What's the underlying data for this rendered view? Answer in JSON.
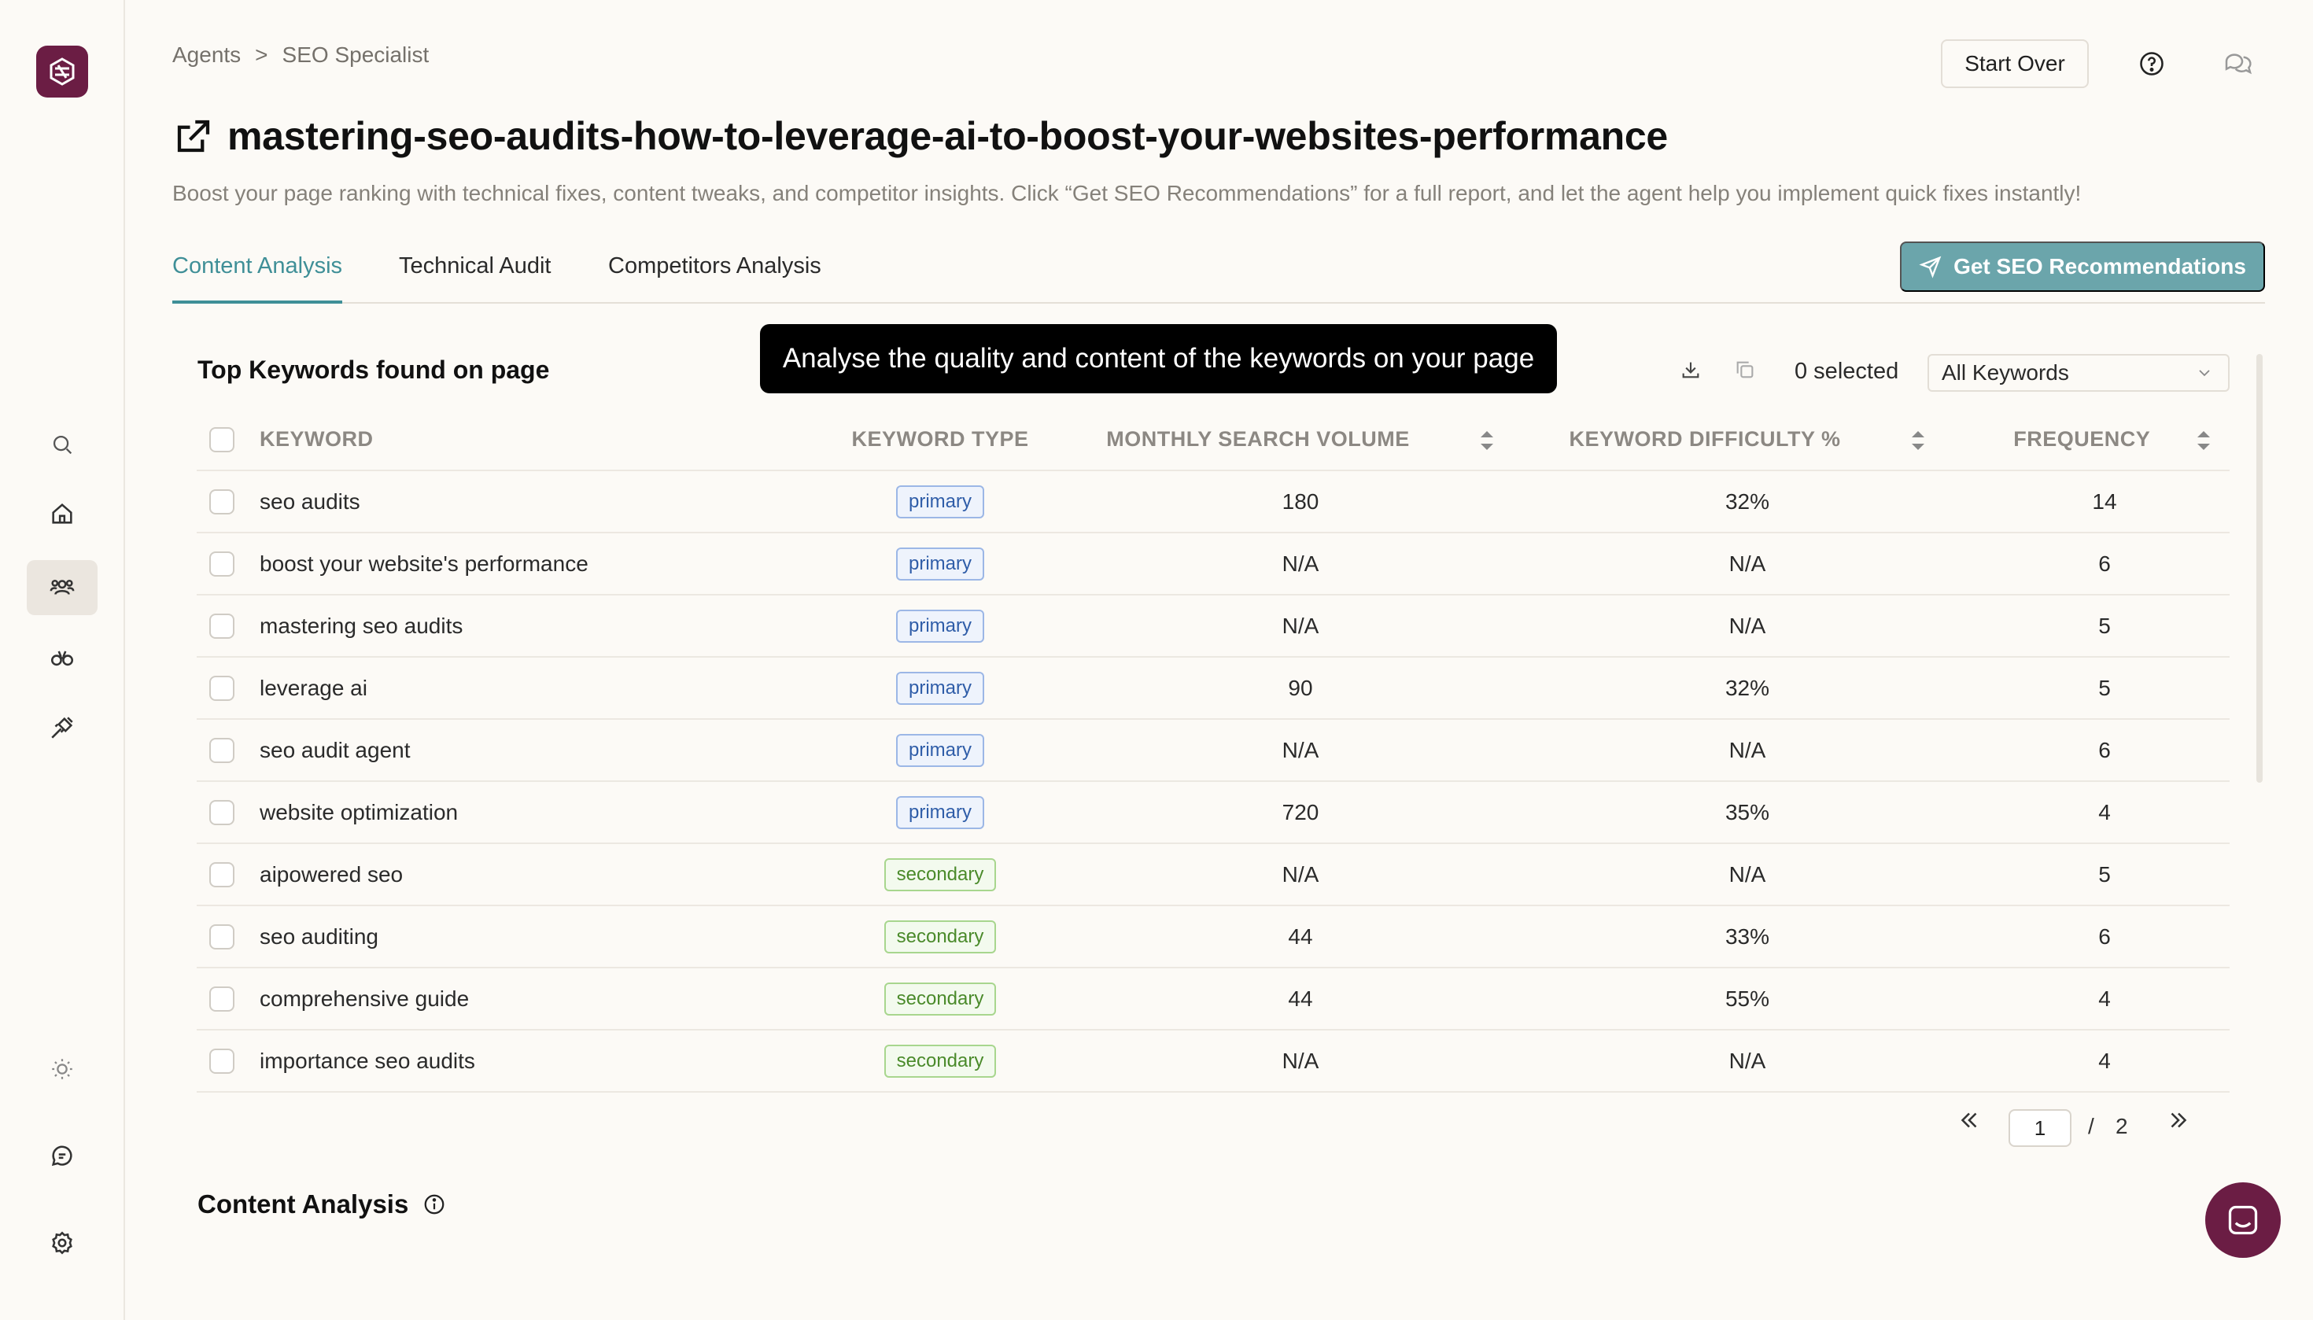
{
  "breadcrumb": {
    "root": "Agents",
    "sep": ">",
    "current": "SEO Specialist"
  },
  "header": {
    "start_over": "Start Over",
    "title": "mastering-seo-audits-how-to-leverage-ai-to-boost-your-websites-performance",
    "subtitle": "Boost your page ranking with technical fixes, content tweaks, and competitor insights. Click “Get SEO Recommendations” for a full report, and let the agent help you implement quick fixes instantly!"
  },
  "tabs": [
    "Content Analysis",
    "Technical Audit",
    "Competitors Analysis"
  ],
  "cta": {
    "label": "Get SEO Recommendations"
  },
  "card": {
    "title": "Top Keywords found on page",
    "tooltip": "Analyse the quality and content of the keywords on your page",
    "selected": "0 selected",
    "filter": "All Keywords"
  },
  "table": {
    "headers": {
      "keyword": "KEYWORD",
      "type": "KEYWORD TYPE",
      "volume": "MONTHLY SEARCH VOLUME",
      "difficulty": "KEYWORD DIFFICULTY %",
      "frequency": "FREQUENCY"
    },
    "rows": [
      {
        "keyword": "seo audits",
        "type": "primary",
        "volume": "180",
        "difficulty": "32%",
        "frequency": "14"
      },
      {
        "keyword": "boost your website's performance",
        "type": "primary",
        "volume": "N/A",
        "difficulty": "N/A",
        "frequency": "6"
      },
      {
        "keyword": "mastering seo audits",
        "type": "primary",
        "volume": "N/A",
        "difficulty": "N/A",
        "frequency": "5"
      },
      {
        "keyword": "leverage ai",
        "type": "primary",
        "volume": "90",
        "difficulty": "32%",
        "frequency": "5"
      },
      {
        "keyword": "seo audit agent",
        "type": "primary",
        "volume": "N/A",
        "difficulty": "N/A",
        "frequency": "6"
      },
      {
        "keyword": "website optimization",
        "type": "primary",
        "volume": "720",
        "difficulty": "35%",
        "frequency": "4"
      },
      {
        "keyword": "aipowered seo",
        "type": "secondary",
        "volume": "N/A",
        "difficulty": "N/A",
        "frequency": "5"
      },
      {
        "keyword": "seo auditing",
        "type": "secondary",
        "volume": "44",
        "difficulty": "33%",
        "frequency": "6"
      },
      {
        "keyword": "comprehensive guide",
        "type": "secondary",
        "volume": "44",
        "difficulty": "55%",
        "frequency": "4"
      },
      {
        "keyword": "importance seo audits",
        "type": "secondary",
        "volume": "N/A",
        "difficulty": "N/A",
        "frequency": "4"
      }
    ]
  },
  "pagination": {
    "current": "1",
    "sep": "/",
    "total": "2"
  },
  "section2": {
    "title": "Content Analysis"
  },
  "colors": {
    "accent": "#3f8f97",
    "brand": "#6b1d44",
    "cta": "#6ba5ab"
  }
}
